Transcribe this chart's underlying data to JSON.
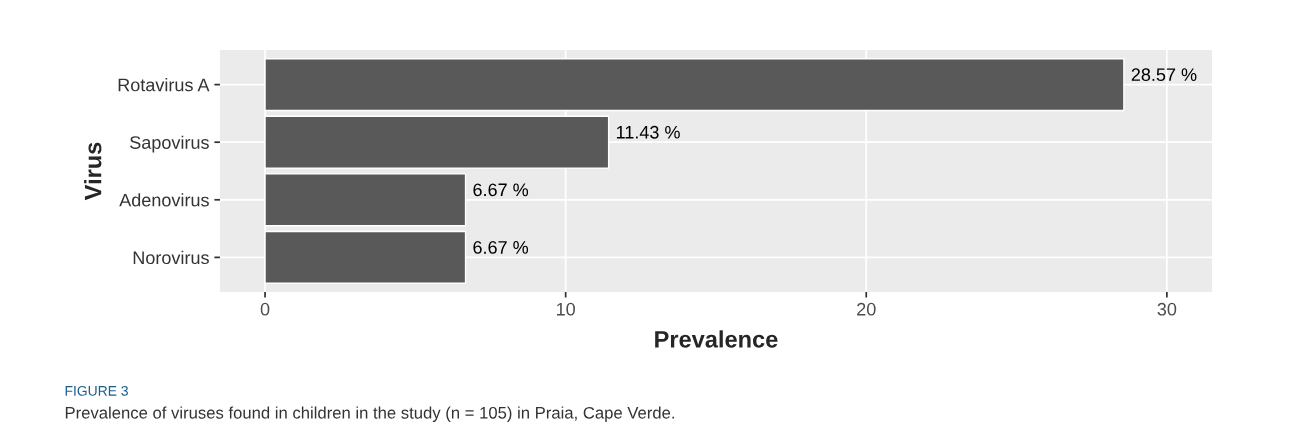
{
  "chart_data": {
    "type": "bar",
    "orientation": "horizontal",
    "xlabel": "Prevalence",
    "ylabel": "Virus",
    "categories": [
      "Rotavirus A",
      "Sapovirus",
      "Adenovirus",
      "Norovirus"
    ],
    "values": [
      28.57,
      11.43,
      6.67,
      6.67
    ],
    "value_labels": [
      "28.57 %",
      "11.43 %",
      "6.67 %",
      "6.67 %"
    ],
    "color": "#595959",
    "xlim": [
      -1.5,
      31.5
    ],
    "xticks": [
      0,
      10,
      20,
      30
    ],
    "grid": true,
    "annotations": [
      "FIGURE 3",
      "Prevalence of viruses found in children in the study (n = 105) in Praia, Cape Verde."
    ]
  }
}
